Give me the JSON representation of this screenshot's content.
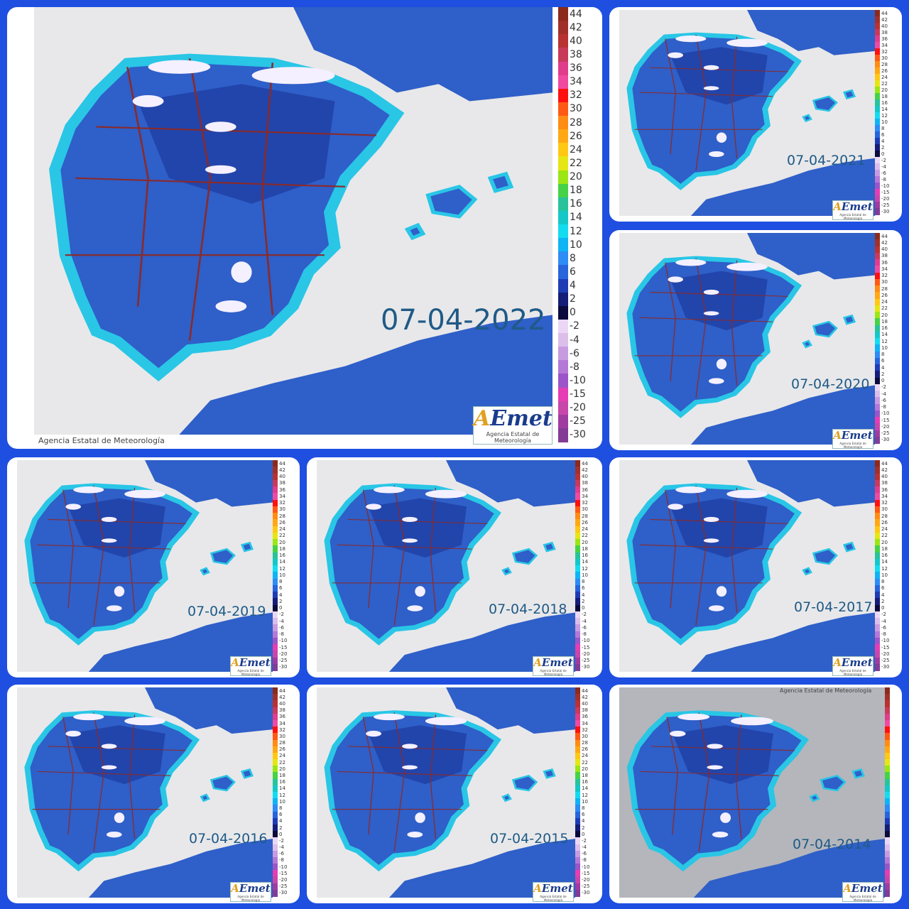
{
  "panels": [
    {
      "date": "07-04-2022",
      "copyright": "Agencia Estatal de Meteorología"
    },
    {
      "date": "07-04-2021"
    },
    {
      "date": "07-04-2020"
    },
    {
      "date": "07-04-2019"
    },
    {
      "date": "07-04-2018"
    },
    {
      "date": "07-04-2017"
    },
    {
      "date": "07-04-2016"
    },
    {
      "date": "07-04-2015"
    },
    {
      "date": "07-04-2014",
      "copyright": "Agencia Estatal de Meteorología"
    }
  ],
  "logo": {
    "brand_a": "A",
    "brand_b": "Emet",
    "subtitle": "Agencia Estatal de Meteorología"
  },
  "legend": {
    "labels": [
      "44",
      "42",
      "40",
      "38",
      "36",
      "34",
      "32",
      "30",
      "28",
      "26",
      "24",
      "22",
      "20",
      "18",
      "16",
      "14",
      "12",
      "10",
      "8",
      "6",
      "4",
      "2",
      "0",
      "-2",
      "-4",
      "-6",
      "-8",
      "-10",
      "-15",
      "-20",
      "-25",
      "-30"
    ],
    "colors": [
      "#8b2a1a",
      "#a0302a",
      "#b83232",
      "#c83a5a",
      "#e03c8c",
      "#f04aa0",
      "#ff1010",
      "#ff5a14",
      "#ff8c14",
      "#ffa814",
      "#ffc814",
      "#e6e614",
      "#9be614",
      "#46d246",
      "#28c39b",
      "#14c8c8",
      "#14dcf0",
      "#0fb4f5",
      "#2d8cf5",
      "#2864dc",
      "#1e3cb4",
      "#141e78",
      "#0a0a3c",
      "#ebd7f5",
      "#dcbeeb",
      "#c89be1",
      "#b478d7",
      "#9b55c8",
      "#e63cb4",
      "#c846aa",
      "#a03ca0",
      "#823c96"
    ]
  },
  "colors": {
    "frame": "#1e4fe0",
    "sea": "#e8e8ea",
    "land": "#2f5fc8",
    "land_dark": "#1c3a9e",
    "coast": "#29c6e6",
    "snow": "#f4f0ff",
    "border": "#8a2a2a",
    "date_text": "#1f5a86"
  }
}
